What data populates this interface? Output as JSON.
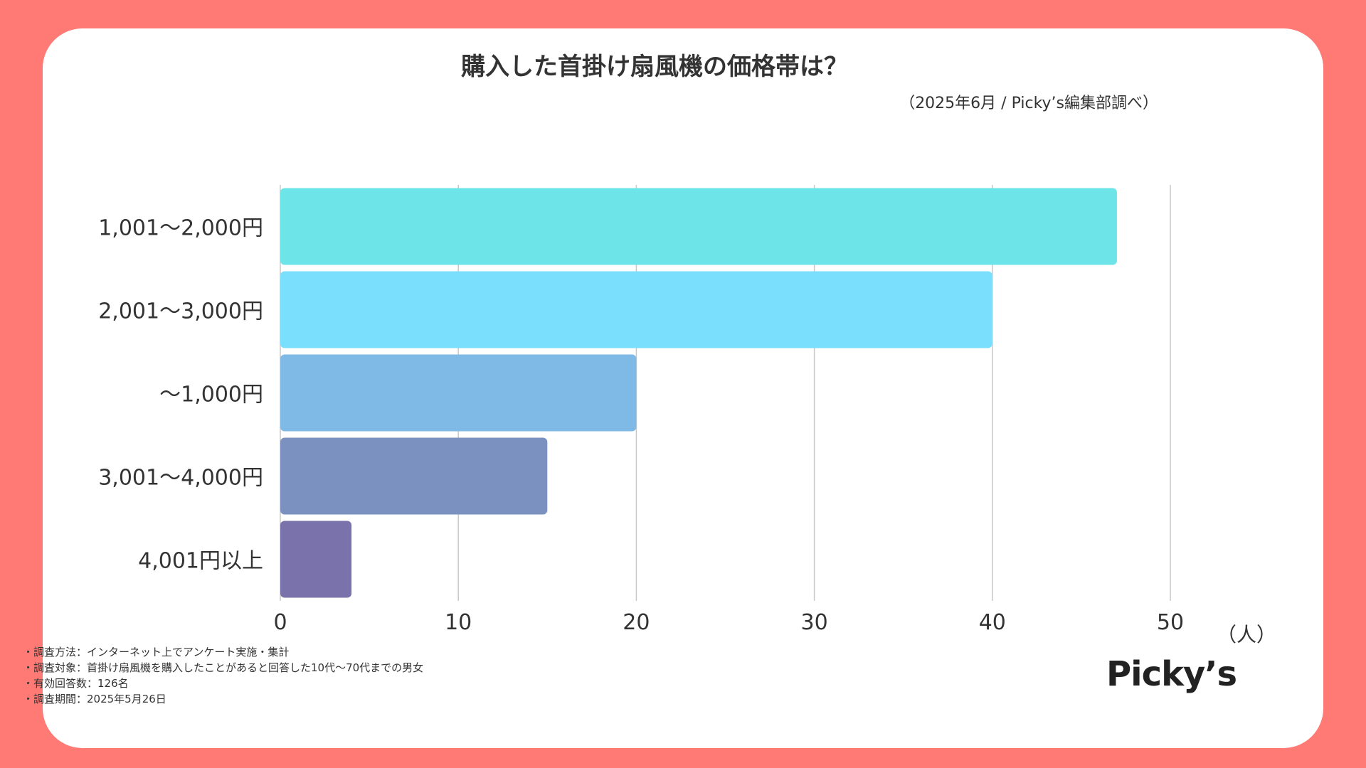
{
  "colors": {
    "background": "#FF7A75",
    "card": "#FFFFFF",
    "text": "#333333",
    "gridline": "#C8C8C8",
    "bar_colors": [
      "#6CE4E8",
      "#7ADFFD",
      "#7FB9E5",
      "#7B92C0",
      "#7A72AA"
    ]
  },
  "chart_data": {
    "type": "bar",
    "orientation": "horizontal",
    "title": "購入した首掛け扇風機の価格帯は？",
    "subtitle": "（2025年6月 / Picky’s編集部調べ）",
    "categories": [
      "1,001〜2,000円",
      "2,001〜3,000円",
      "〜1,000円",
      "3,001〜4,000円",
      "4,001円以上"
    ],
    "values": [
      47,
      40,
      20,
      15,
      4
    ],
    "xlim": [
      0,
      50
    ],
    "xticks": [
      "0",
      "10",
      "20",
      "30",
      "40",
      "50"
    ],
    "xlabel": "（人）",
    "ylabel": "",
    "grid": true,
    "legend": "none"
  },
  "notes": [
    "・調査方法：インターネット上でアンケート実施・集計",
    "・調査対象：首掛け扇風機を購入したことがあると回答した10代〜70代までの男女",
    "・有効回答数：126名",
    "・調査期間：2025年5月26日"
  ],
  "logo": "Picky’s"
}
